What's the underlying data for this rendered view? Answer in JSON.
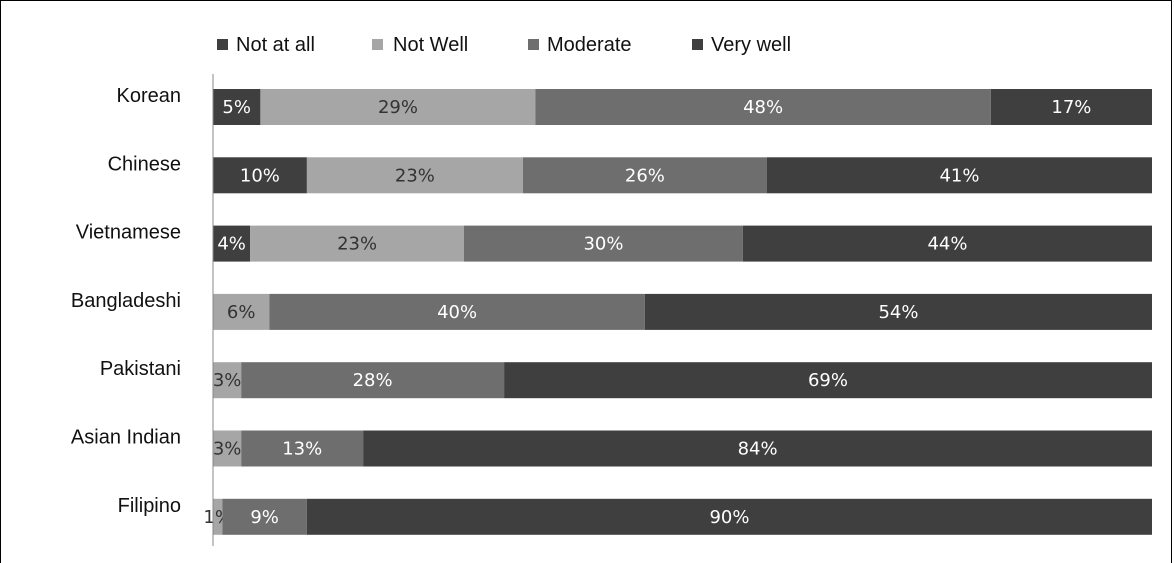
{
  "chart_data": {
    "type": "bar",
    "orientation": "horizontal",
    "stacked": true,
    "percent_stacked": true,
    "legend_position": "top",
    "grid": false,
    "title": "",
    "xlabel": "",
    "ylabel": "",
    "categories": [
      "Korean",
      "Chinese",
      "Vietnamese",
      "Bangladeshi",
      "Pakistani",
      "Asian Indian",
      "Filipino"
    ],
    "series": [
      {
        "name": "Not at all",
        "color": "#3f3f3f",
        "values": [
          5,
          10,
          4,
          0,
          0,
          0,
          0
        ]
      },
      {
        "name": "Not Well",
        "color": "#a6a6a6",
        "values": [
          29,
          23,
          23,
          6,
          3,
          3,
          1
        ]
      },
      {
        "name": "Moderate",
        "color": "#6e6e6e",
        "values": [
          48,
          26,
          30,
          40,
          28,
          13,
          9
        ]
      },
      {
        "name": "Very well",
        "color": "#3f3f3f",
        "values": [
          17,
          41,
          44,
          54,
          69,
          84,
          90
        ]
      }
    ],
    "data_labels": [
      [
        "5%",
        "29%",
        "48%",
        "17%"
      ],
      [
        "10%",
        "23%",
        "26%",
        "41%"
      ],
      [
        "4%",
        "23%",
        "30%",
        "44%"
      ],
      [
        "",
        "6%",
        "40%",
        "54%"
      ],
      [
        "",
        "3%",
        "28%",
        "69%"
      ],
      [
        "",
        "3%",
        "13%",
        "84%"
      ],
      [
        "",
        "1%",
        "9%",
        "90%"
      ]
    ]
  }
}
